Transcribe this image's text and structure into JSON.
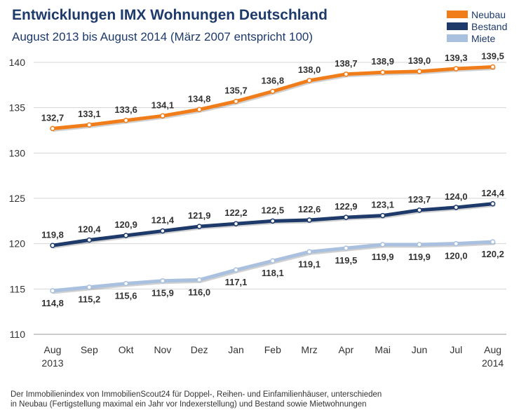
{
  "chart_data": {
    "type": "line",
    "title": "Entwicklungen IMX Wohnungen Deutschland",
    "subtitle": "August 2013 bis August 2014 (März 2007 entspricht 100)",
    "categories": [
      {
        "month": "Aug",
        "year": "2013"
      },
      {
        "month": "Sep",
        "year": ""
      },
      {
        "month": "Okt",
        "year": ""
      },
      {
        "month": "Nov",
        "year": ""
      },
      {
        "month": "Dez",
        "year": ""
      },
      {
        "month": "Jan",
        "year": ""
      },
      {
        "month": "Feb",
        "year": ""
      },
      {
        "month": "Mrz",
        "year": ""
      },
      {
        "month": "Apr",
        "year": ""
      },
      {
        "month": "Mai",
        "year": ""
      },
      {
        "month": "Jun",
        "year": ""
      },
      {
        "month": "Jul",
        "year": ""
      },
      {
        "month": "Aug",
        "year": "2014"
      }
    ],
    "ylim": [
      110,
      140
    ],
    "yticks": [
      110,
      115,
      120,
      125,
      130,
      135,
      140
    ],
    "grid": true,
    "legend_position": "top-right",
    "series": [
      {
        "name": "Neubau",
        "color": "#f07d1a",
        "label_position": "above",
        "values": [
          132.7,
          133.1,
          133.6,
          134.1,
          134.8,
          135.7,
          136.8,
          138.0,
          138.7,
          138.9,
          139.0,
          139.3,
          139.5
        ],
        "labels": [
          "132,7",
          "133,1",
          "133,6",
          "134,1",
          "134,8",
          "135,7",
          "136,8",
          "138,0",
          "138,7",
          "138,9",
          "139,0",
          "139,3",
          "139,5"
        ]
      },
      {
        "name": "Bestand",
        "color": "#1d3a6b",
        "label_position": "above",
        "values": [
          119.8,
          120.4,
          120.9,
          121.4,
          121.9,
          122.2,
          122.5,
          122.6,
          122.9,
          123.1,
          123.7,
          124.0,
          124.4
        ],
        "labels": [
          "119,8",
          "120,4",
          "120,9",
          "121,4",
          "121,9",
          "122,2",
          "122,5",
          "122,6",
          "122,9",
          "123,1",
          "123,7",
          "124,0",
          "124,4"
        ]
      },
      {
        "name": "Miete",
        "color": "#a9c0de",
        "label_position": "below",
        "values": [
          114.8,
          115.2,
          115.6,
          115.9,
          116.0,
          117.1,
          118.1,
          119.1,
          119.5,
          119.9,
          119.9,
          120.0,
          120.2
        ],
        "labels": [
          "114,8",
          "115,2",
          "115,6",
          "115,9",
          "116,0",
          "117,1",
          "118,1",
          "119,1",
          "119,5",
          "119,9",
          "119,9",
          "120,0",
          "120,2"
        ]
      }
    ]
  },
  "footnote": {
    "line1": "Der Immobilienindex von ImmobilienScout24 für Doppel-, Reihen- und Einfamilienhäuser, unterschieden",
    "line2": "in Neubau (Fertigstellung maximal ein Jahr vor Indexerstellung) und Bestand sowie Mietwohnungen"
  }
}
